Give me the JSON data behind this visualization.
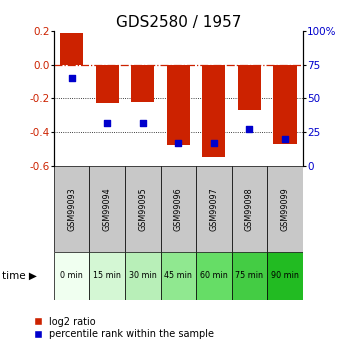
{
  "title": "GDS2580 / 1957",
  "samples": [
    "GSM99093",
    "GSM99094",
    "GSM99095",
    "GSM99096",
    "GSM99097",
    "GSM99098",
    "GSM99099"
  ],
  "time_labels": [
    "0 min",
    "15 min",
    "30 min",
    "45 min",
    "60 min",
    "75 min",
    "90 min"
  ],
  "log2_ratio": [
    0.19,
    -0.23,
    -0.22,
    -0.48,
    -0.55,
    -0.27,
    -0.47
  ],
  "percentile_rank": [
    65,
    32,
    32,
    17,
    17,
    27,
    20
  ],
  "bar_color": "#cc2200",
  "dot_color": "#0000cc",
  "ylim_left": [
    -0.6,
    0.2
  ],
  "ylim_right": [
    0,
    100
  ],
  "yticks_left": [
    0.2,
    0.0,
    -0.2,
    -0.4,
    -0.6
  ],
  "yticks_right": [
    100,
    75,
    50,
    25,
    0
  ],
  "time_colors": [
    "#f0fff0",
    "#d4f7d4",
    "#b8efb8",
    "#90e890",
    "#66dd66",
    "#44cc44",
    "#22bb22"
  ],
  "sample_bg_color": "#c8c8c8",
  "bar_width": 0.65,
  "title_fontsize": 11,
  "tick_fontsize": 7.5,
  "legend_fontsize": 7
}
